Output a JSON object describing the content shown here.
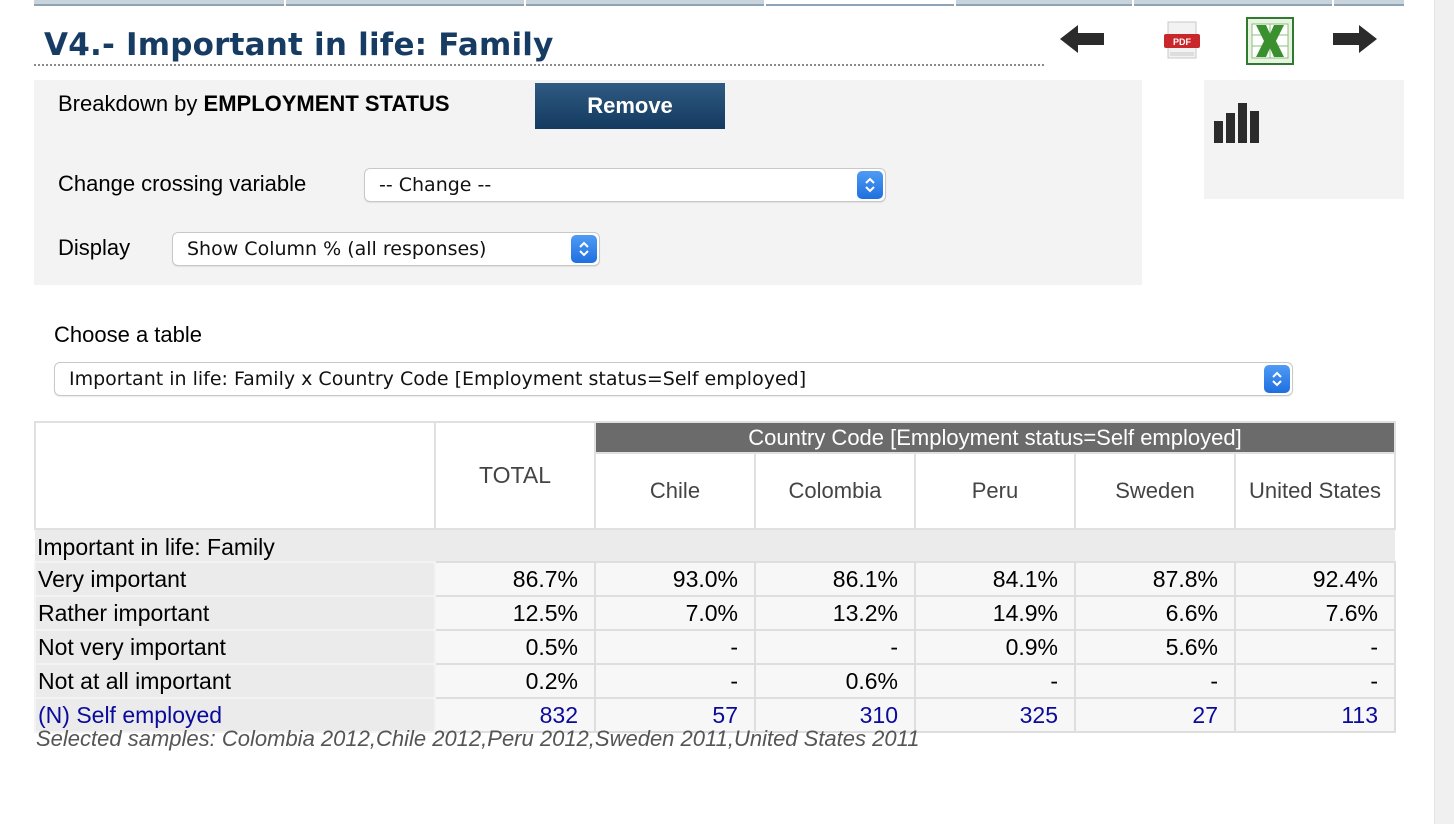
{
  "page": {
    "title": "V4.- Important in life: Family"
  },
  "toolbar": {
    "back_icon": "arrow-left-icon",
    "pdf_icon": "pdf-icon",
    "pdf_text": "PDF",
    "excel_icon": "excel-icon",
    "forward_icon": "arrow-right-icon",
    "chart_icon": "bar-chart-icon"
  },
  "breakdown": {
    "prefix": "Breakdown by ",
    "variable": "EMPLOYMENT STATUS",
    "remove_label": "Remove"
  },
  "crossing": {
    "label": "Change crossing variable",
    "selected": "-- Change --"
  },
  "display": {
    "label": "Display",
    "selected": "Show Column % (all responses)"
  },
  "table_chooser": {
    "label": "Choose a table",
    "selected": "Important in life: Family x Country Code [Employment status=Self employed]"
  },
  "table": {
    "total_header": "TOTAL",
    "group_header": "Country Code [Employment status=Self employed]",
    "columns": [
      "Chile",
      "Colombia",
      "Peru",
      "Sweden",
      "United States"
    ],
    "section_label": "Important in life: Family",
    "rows": [
      {
        "label": "Very important",
        "total": "86.7%",
        "values": [
          "93.0%",
          "86.1%",
          "84.1%",
          "87.8%",
          "92.4%"
        ]
      },
      {
        "label": "Rather important",
        "total": "12.5%",
        "values": [
          "7.0%",
          "13.2%",
          "14.9%",
          "6.6%",
          "7.6%"
        ]
      },
      {
        "label": "Not very important",
        "total": "0.5%",
        "values": [
          "-",
          "-",
          "0.9%",
          "5.6%",
          "-"
        ]
      },
      {
        "label": "Not at all important",
        "total": "0.2%",
        "values": [
          "-",
          "0.6%",
          "-",
          "-",
          "-"
        ]
      }
    ],
    "n_row": {
      "label": "(N) Self employed",
      "total": "832",
      "values": [
        "57",
        "310",
        "325",
        "27",
        "113"
      ]
    }
  },
  "footnote": "Selected samples: Colombia 2012,Chile 2012,Peru 2012,Sweden 2011,United States 2011",
  "colors": {
    "title": "#173c64",
    "button": "#1f4a70",
    "n_row_text": "#0a0a9b",
    "group_header_bg": "#6b6b6b",
    "select_caret": "#2a7ae8"
  }
}
